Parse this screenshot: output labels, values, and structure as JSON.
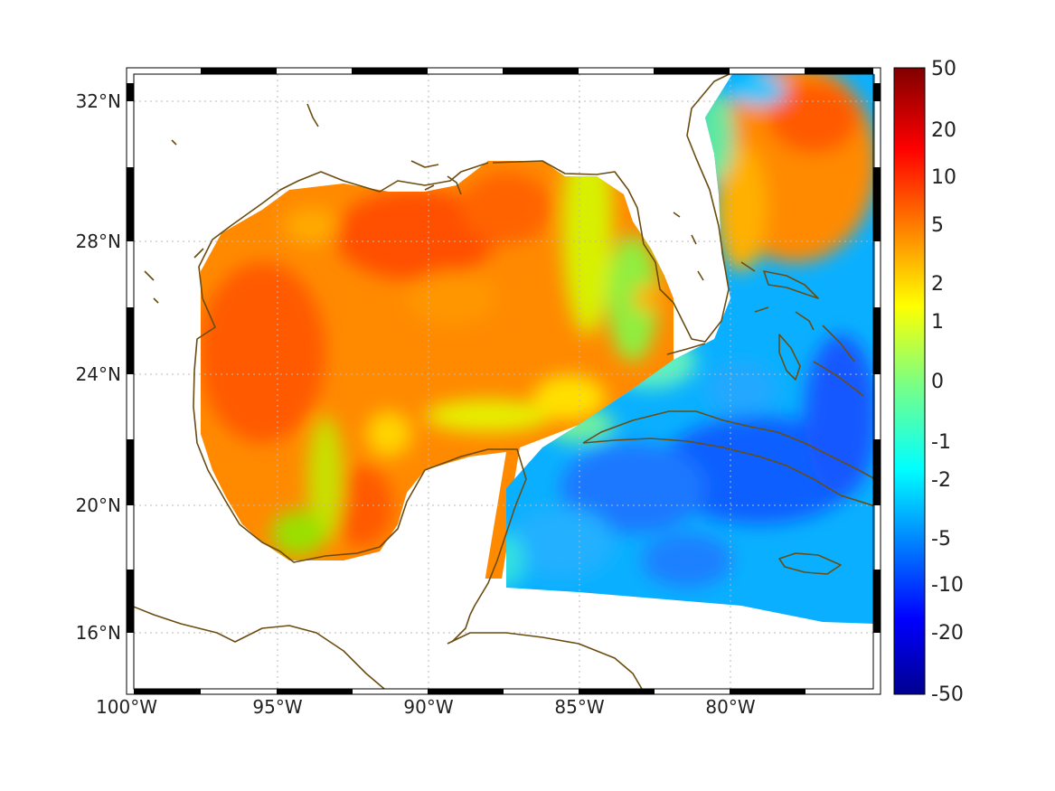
{
  "map": {
    "region": "Gulf of Mexico / Caribbean",
    "lon_ticks": [
      "100°W",
      "95°W",
      "90°W",
      "85°W",
      "80°W"
    ],
    "lat_ticks": [
      "32°N",
      "28°N",
      "24°N",
      "20°N",
      "16°N"
    ],
    "coastline_color": "#6b4c10",
    "grid": true
  },
  "colorbar": {
    "labels": [
      "50",
      "20",
      "10",
      "5",
      "2",
      "1",
      "0",
      "-1",
      "-2",
      "-5",
      "-10",
      "-20",
      "-50"
    ],
    "colormap": "jet",
    "scale": "symmetric-log"
  }
}
